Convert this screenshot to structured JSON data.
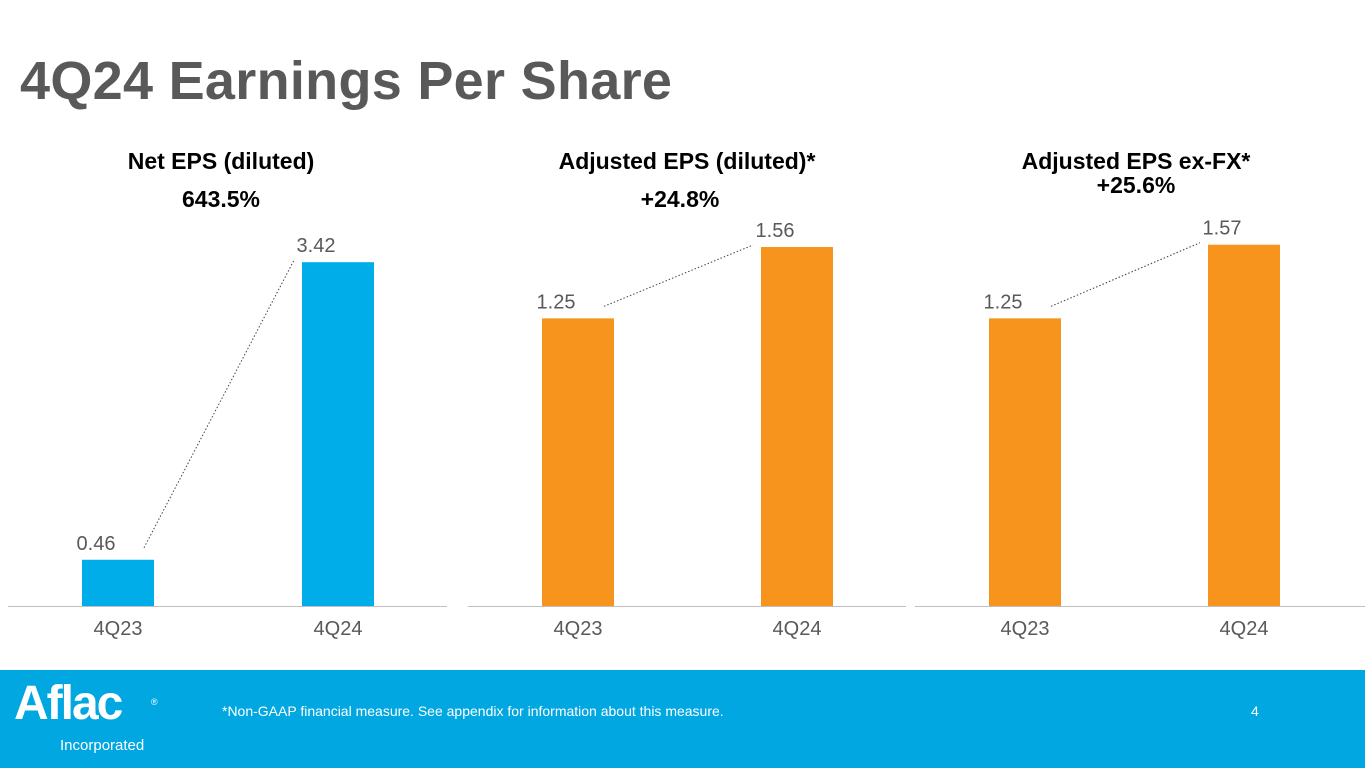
{
  "page": {
    "title": "4Q24 Earnings Per Share",
    "footnote": "*Non-GAAP financial measure. See appendix for information about this measure.",
    "page_number": "4",
    "logo_text": "Aflac",
    "logo_registered": "®",
    "logo_subtext": "Incorporated"
  },
  "colors": {
    "blue_bar": "#00ADE9",
    "orange_bar": "#F7941D",
    "footer": "#00A7E1",
    "title": "#595959",
    "label": "#595959",
    "axis": "#BFBFBF"
  },
  "chart_data": [
    {
      "type": "bar",
      "title": "Net EPS (diluted)",
      "change": "643.5%",
      "categories": [
        "4Q23",
        "4Q24"
      ],
      "values": [
        0.46,
        3.42
      ],
      "labels": [
        "0.46",
        "3.42"
      ],
      "color": "#00ADE9",
      "ylim": [
        0,
        3.8
      ]
    },
    {
      "type": "bar",
      "title": "Adjusted EPS (diluted)*",
      "change": "+24.8%",
      "categories": [
        "4Q23",
        "4Q24"
      ],
      "values": [
        1.25,
        1.56
      ],
      "labels": [
        "1.25",
        "1.56"
      ],
      "color": "#F7941D",
      "ylim": [
        0,
        1.66
      ]
    },
    {
      "type": "bar",
      "title": "Adjusted EPS ex-FX*",
      "change": "+25.6%",
      "categories": [
        "4Q23",
        "4Q24"
      ],
      "values": [
        1.25,
        1.57
      ],
      "labels": [
        "1.25",
        "1.57"
      ],
      "color": "#F7941D",
      "ylim": [
        0,
        1.66
      ]
    }
  ]
}
